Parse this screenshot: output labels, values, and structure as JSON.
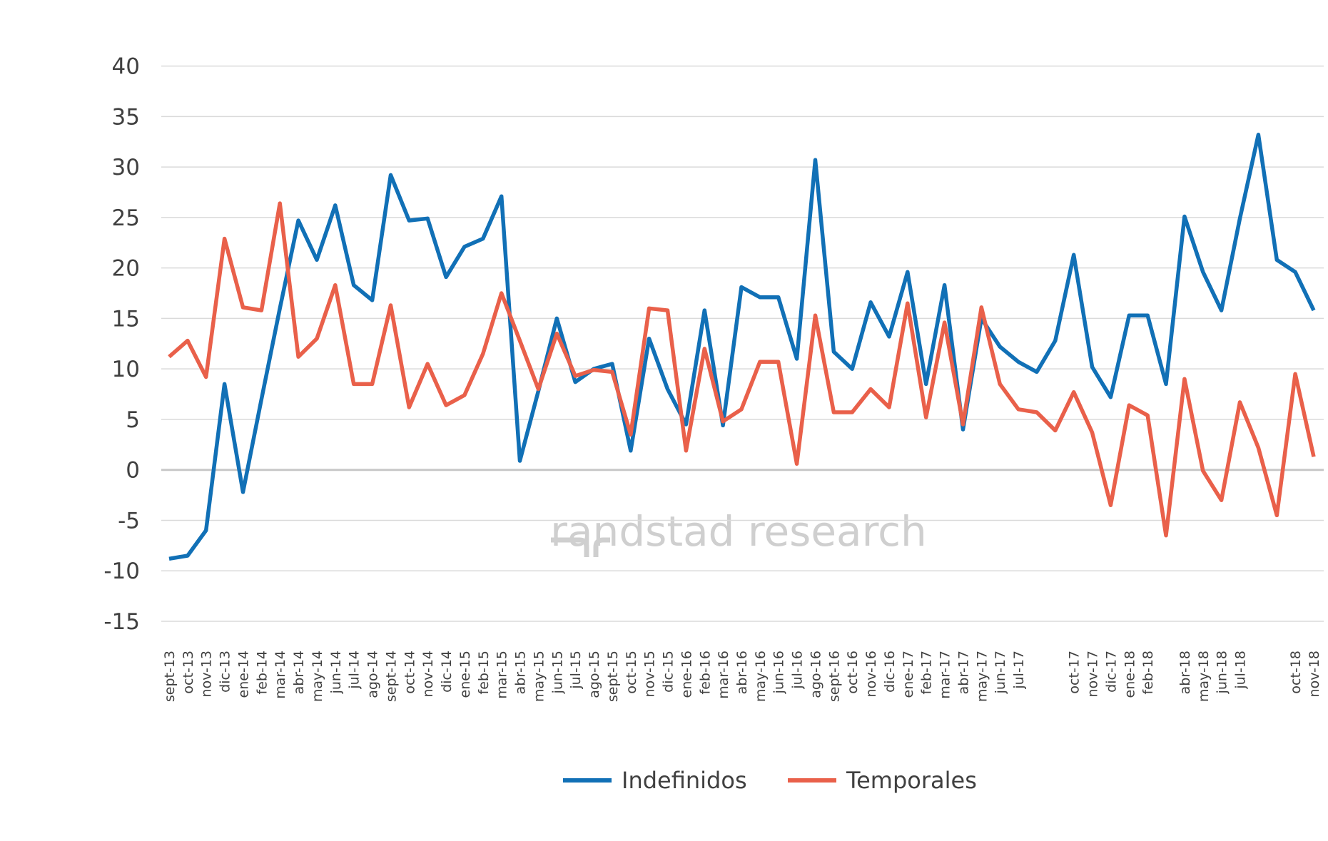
{
  "chart_data": {
    "type": "line",
    "watermark": "randstad research",
    "categories": [
      "sept-13",
      "oct-13",
      "nov-13",
      "dic-13",
      "ene-14",
      "feb-14",
      "mar-14",
      "abr-14",
      "may-14",
      "jun-14",
      "jul-14",
      "ago-14",
      "sept-14",
      "oct-14",
      "nov-14",
      "dic-14",
      "ene-15",
      "feb-15",
      "mar-15",
      "abr-15",
      "may-15",
      "jun-15",
      "jul-15",
      "ago-15",
      "sept-15",
      "oct-15",
      "nov-15",
      "dic-15",
      "ene-16",
      "feb-16",
      "mar-16",
      "abr-16",
      "may-16",
      "jun-16",
      "jul-16",
      "ago-16",
      "sept-16",
      "oct-16",
      "nov-16",
      "dic-16",
      "ene-17",
      "feb-17",
      "mar-17",
      "abr-17",
      "may-17",
      "jun-17",
      "jul-17",
      null,
      null,
      "oct-17",
      "nov-17",
      "dic-17",
      "ene-18",
      "feb-18",
      null,
      "abr-18",
      "may-18",
      "jun-18",
      "jul-18",
      null,
      null,
      "oct-18",
      "nov-18"
    ],
    "series": [
      {
        "name": "Indefinidos",
        "color": "#1170b6",
        "values": [
          -8.8,
          -8.5,
          -6,
          8.5,
          -2.2,
          7,
          16,
          24.7,
          20.8,
          26.2,
          18.3,
          16.8,
          29.2,
          24.7,
          24.9,
          19.1,
          22.1,
          22.9,
          27.1,
          0.9,
          7.8,
          15,
          8.7,
          10,
          10.5,
          1.9,
          13,
          8,
          4.5,
          15.8,
          4.4,
          18.1,
          17.1,
          17.1,
          11,
          30.7,
          11.7,
          10,
          16.6,
          13.2,
          19.6,
          8.5,
          18.3,
          4,
          15,
          12.2,
          10.7,
          9.7,
          12.8,
          21.3,
          10.2,
          7.2,
          15.3,
          15.3,
          8.5,
          25.1,
          19.6,
          15.8,
          24.9,
          33.2,
          20.8,
          19.6,
          15.8
        ]
      },
      {
        "name": "Temporales",
        "color": "#e9604a",
        "values": [
          11.2,
          12.8,
          9.2,
          22.9,
          16.1,
          15.8,
          26.4,
          11.2,
          13,
          18.3,
          8.5,
          8.5,
          16.3,
          6.2,
          10.5,
          6.4,
          7.4,
          11.5,
          17.5,
          12.8,
          8,
          13.5,
          9.3,
          9.9,
          9.7,
          3.5,
          16,
          15.8,
          1.9,
          12,
          4.8,
          6,
          10.7,
          10.7,
          0.6,
          15.3,
          5.7,
          5.7,
          8,
          6.2,
          16.5,
          5.2,
          14.6,
          4.5,
          16.1,
          8.5,
          6,
          5.7,
          3.9,
          7.7,
          3.7,
          -3.5,
          6.4,
          5.4,
          -6.5,
          9,
          -0.1,
          -3,
          6.7,
          2.2,
          -4.5,
          9.5,
          1.3
        ]
      }
    ],
    "ylim": [
      -15,
      40
    ],
    "yticks": [
      -15,
      -10,
      -5,
      0,
      5,
      10,
      15,
      20,
      25,
      30,
      35,
      40
    ],
    "grid": true,
    "legend": "bottom"
  }
}
